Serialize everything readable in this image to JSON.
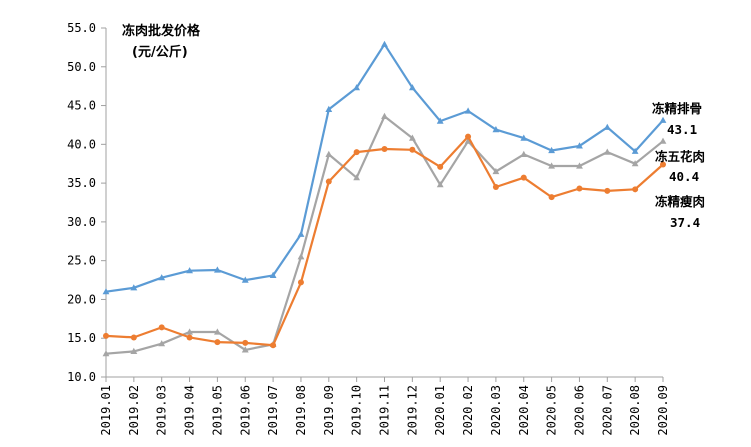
{
  "chart_data": {
    "type": "line",
    "title": "冻肉批发价格",
    "subtitle": "(元/公斤)",
    "ylim": [
      10.0,
      55.0
    ],
    "yticks": [
      "10.0",
      "15.0",
      "20.0",
      "25.0",
      "30.0",
      "35.0",
      "40.0",
      "45.0",
      "50.0",
      "55.0"
    ],
    "grid": false,
    "categories": [
      "2019.01",
      "2019.02",
      "2019.03",
      "2019.04",
      "2019.05",
      "2019.06",
      "2019.07",
      "2019.08",
      "2019.09",
      "2019.10",
      "2019.11",
      "2019.12",
      "2020.01",
      "2020.02",
      "2020.03",
      "2020.04",
      "2020.05",
      "2020.06",
      "2020.07",
      "2020.08",
      "2020.09"
    ],
    "series": [
      {
        "name": "冻精排骨",
        "label_value": "43.1",
        "color": "#5b9bd5",
        "marker": "triangle",
        "values": [
          21.0,
          21.5,
          22.8,
          23.7,
          23.8,
          22.5,
          23.1,
          28.4,
          44.5,
          47.3,
          52.9,
          47.3,
          43.0,
          44.3,
          41.9,
          40.8,
          39.2,
          39.8,
          42.2,
          39.1,
          43.1
        ]
      },
      {
        "name": "冻五花肉",
        "label_value": "40.4",
        "color": "#a5a5a5",
        "marker": "triangle",
        "values": [
          13.0,
          13.3,
          14.3,
          15.8,
          15.8,
          13.5,
          14.2,
          25.5,
          38.7,
          35.7,
          43.6,
          40.8,
          34.8,
          40.4,
          36.5,
          38.7,
          37.2,
          37.2,
          39.0,
          37.5,
          40.4
        ]
      },
      {
        "name": "冻精瘦肉",
        "label_value": "37.4",
        "color": "#ed7d31",
        "marker": "circle",
        "values": [
          15.3,
          15.1,
          16.4,
          15.1,
          14.5,
          14.4,
          14.1,
          22.2,
          35.2,
          39.0,
          39.4,
          39.3,
          37.1,
          41.0,
          34.5,
          35.7,
          33.2,
          34.3,
          34.0,
          34.2,
          37.4
        ]
      }
    ]
  }
}
